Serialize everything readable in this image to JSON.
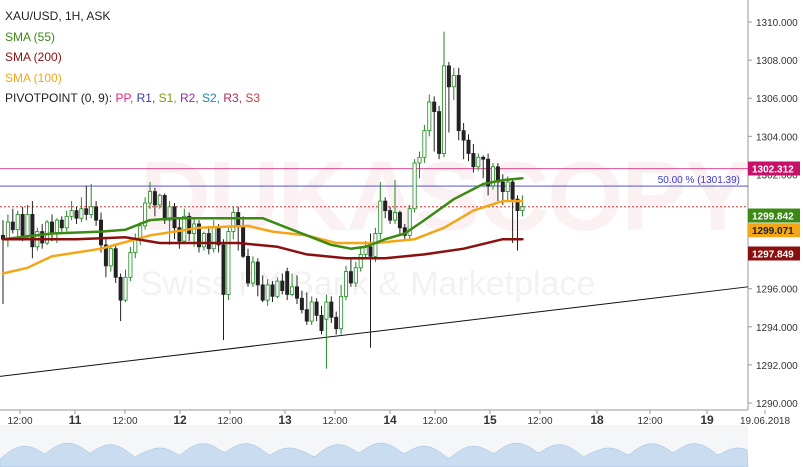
{
  "legend": {
    "symbol": "XAU/USD, 1H, ASK",
    "sma55": "SMA (55)",
    "sma200": "SMA (200)",
    "sma100": "SMA (100)",
    "pivot_prefix": "PIVOTPOINT (0, 9):",
    "pivot_items": [
      {
        "label": "PP",
        "color": "#e0208c"
      },
      {
        "label": "R1",
        "color": "#3a3aa8"
      },
      {
        "label": "S1",
        "color": "#7a9a10"
      },
      {
        "label": "R2",
        "color": "#8a2aa8"
      },
      {
        "label": "S2",
        "color": "#1a8aa8"
      },
      {
        "label": "R3",
        "color": "#a82a5a"
      },
      {
        "label": "S3",
        "color": "#c04040"
      }
    ]
  },
  "watermark": {
    "main": "DUKASCOPY",
    "sub": "Swiss FX Bank & Marketplace"
  },
  "colors": {
    "up": "#1e8a1e",
    "down": "#222222",
    "sma55": "#3a8a14",
    "sma100": "#f5a617",
    "sma200": "#8a1010",
    "pp_line": "#c8106a",
    "fib_line": "#3a3ad0",
    "trendline": "#111111",
    "current_line": "#cc1111"
  },
  "chart_data": {
    "type": "candlestick",
    "symbol": "XAU/USD",
    "timeframe": "1H",
    "price_side": "ASK",
    "ylim": [
      1290.0,
      1311.0
    ],
    "y_ticks": [
      "1310.000",
      "1308.000",
      "1306.000",
      "1304.000",
      "1302.000",
      "1300.000",
      "1298.000",
      "1296.000",
      "1294.000",
      "1292.000",
      "1290.000"
    ],
    "x_ticks": [
      "12:00",
      "11",
      "12:00",
      "12",
      "12:00",
      "13",
      "12:00",
      "14",
      "12:00",
      "15",
      "12:00",
      "18",
      "12:00",
      "19",
      "19.06.2018"
    ],
    "candles": [
      [
        1298.8,
        1298.6,
        1299.6,
        1295.2
      ],
      [
        1298.6,
        1299.5,
        1299.9,
        1298.2
      ],
      [
        1299.5,
        1299.1,
        1300.2,
        1298.9
      ],
      [
        1299.1,
        1299.9,
        1300.1,
        1298.7
      ],
      [
        1299.9,
        1298.8,
        1300.3,
        1298.5
      ],
      [
        1298.8,
        1299.9,
        1300.4,
        1298.6
      ],
      [
        1299.9,
        1298.2,
        1300.6,
        1297.6
      ],
      [
        1298.2,
        1299.0,
        1299.2,
        1298.0
      ],
      [
        1299.0,
        1298.4,
        1299.4,
        1298.1
      ],
      [
        1298.4,
        1299.5,
        1299.6,
        1298.3
      ],
      [
        1299.5,
        1298.9,
        1299.9,
        1298.5
      ],
      [
        1298.9,
        1299.6,
        1299.7,
        1298.4
      ],
      [
        1299.6,
        1299.2,
        1299.8,
        1299.0
      ],
      [
        1299.2,
        1299.8,
        1300.1,
        1299.0
      ],
      [
        1299.8,
        1300.1,
        1300.6,
        1299.6
      ],
      [
        1300.1,
        1299.7,
        1300.3,
        1299.4
      ],
      [
        1299.7,
        1300.2,
        1300.8,
        1299.5
      ],
      [
        1300.2,
        1299.9,
        1301.4,
        1299.6
      ],
      [
        1299.9,
        1300.3,
        1301.5,
        1299.7
      ],
      [
        1300.3,
        1299.6,
        1300.6,
        1299.3
      ],
      [
        1299.6,
        1298.3,
        1300.0,
        1297.9
      ],
      [
        1298.3,
        1297.2,
        1298.6,
        1296.6
      ],
      [
        1297.2,
        1298.1,
        1298.3,
        1296.9
      ],
      [
        1298.1,
        1296.6,
        1298.3,
        1296.3
      ],
      [
        1296.6,
        1295.4,
        1296.8,
        1294.3
      ],
      [
        1295.4,
        1296.6,
        1297.0,
        1295.3
      ],
      [
        1296.6,
        1297.9,
        1298.2,
        1296.4
      ],
      [
        1297.9,
        1298.6,
        1298.9,
        1297.6
      ],
      [
        1298.6,
        1299.3,
        1299.5,
        1298.3
      ],
      [
        1299.3,
        1300.5,
        1300.8,
        1299.1
      ],
      [
        1300.5,
        1301.1,
        1301.6,
        1300.2
      ],
      [
        1301.1,
        1300.4,
        1301.3,
        1299.8
      ],
      [
        1300.4,
        1300.9,
        1301.0,
        1300.2
      ],
      [
        1300.9,
        1299.6,
        1301.0,
        1299.4
      ],
      [
        1299.6,
        1300.3,
        1300.6,
        1298.3
      ],
      [
        1300.3,
        1299.2,
        1300.5,
        1298.6
      ],
      [
        1299.2,
        1298.5,
        1299.7,
        1298.1
      ],
      [
        1298.5,
        1299.8,
        1300.2,
        1298.4
      ],
      [
        1299.8,
        1298.9,
        1300.0,
        1298.5
      ],
      [
        1298.9,
        1299.4,
        1299.7,
        1298.2
      ],
      [
        1299.4,
        1298.2,
        1299.6,
        1297.9
      ],
      [
        1298.2,
        1298.9,
        1299.0,
        1298.0
      ],
      [
        1298.9,
        1298.1,
        1299.3,
        1297.8
      ],
      [
        1298.1,
        1299.2,
        1299.6,
        1297.9
      ],
      [
        1299.2,
        1298.3,
        1299.4,
        1297.9
      ],
      [
        1298.3,
        1295.7,
        1298.6,
        1293.3
      ],
      [
        1295.7,
        1299.0,
        1299.2,
        1295.4
      ],
      [
        1299.0,
        1300.0,
        1300.3,
        1298.6
      ],
      [
        1300.0,
        1299.3,
        1300.3,
        1298.0
      ],
      [
        1299.3,
        1297.7,
        1299.8,
        1297.6
      ],
      [
        1297.7,
        1296.3,
        1298.1,
        1296.1
      ],
      [
        1296.3,
        1297.4,
        1297.7,
        1296.1
      ],
      [
        1297.4,
        1296.2,
        1297.6,
        1295.6
      ],
      [
        1296.2,
        1295.4,
        1296.7,
        1295.3
      ],
      [
        1295.4,
        1296.2,
        1296.5,
        1295.1
      ],
      [
        1296.2,
        1295.6,
        1296.4,
        1295.3
      ],
      [
        1295.6,
        1296.4,
        1296.6,
        1295.5
      ],
      [
        1296.4,
        1295.9,
        1296.8,
        1295.7
      ],
      [
        1296.9,
        1295.7,
        1297.1,
        1295.4
      ],
      [
        1295.7,
        1296.1,
        1296.8,
        1295.6
      ],
      [
        1296.1,
        1295.5,
        1296.7,
        1295.2
      ],
      [
        1295.5,
        1294.9,
        1295.9,
        1294.7
      ],
      [
        1294.9,
        1294.3,
        1295.8,
        1294.1
      ],
      [
        1294.3,
        1295.3,
        1295.6,
        1294.1
      ],
      [
        1295.3,
        1294.6,
        1295.5,
        1294.3
      ],
      [
        1294.6,
        1293.8,
        1295.1,
        1293.6
      ],
      [
        1294.4,
        1295.3,
        1295.7,
        1291.8
      ],
      [
        1295.3,
        1294.5,
        1295.6,
        1294.2
      ],
      [
        1294.5,
        1293.9,
        1294.8,
        1293.6
      ],
      [
        1293.9,
        1295.6,
        1296.2,
        1293.6
      ],
      [
        1295.6,
        1296.9,
        1297.2,
        1295.4
      ],
      [
        1296.9,
        1296.3,
        1297.6,
        1296.1
      ],
      [
        1296.3,
        1297.1,
        1297.4,
        1296.1
      ],
      [
        1297.1,
        1297.8,
        1298.2,
        1296.9
      ],
      [
        1297.8,
        1298.2,
        1298.5,
        1297.6
      ],
      [
        1298.2,
        1297.7,
        1298.9,
        1292.9
      ],
      [
        1297.7,
        1298.9,
        1299.2,
        1297.4
      ],
      [
        1298.9,
        1300.6,
        1301.6,
        1298.6
      ],
      [
        1300.6,
        1300.1,
        1300.8,
        1299.7
      ],
      [
        1300.1,
        1299.6,
        1300.3,
        1299.4
      ],
      [
        1299.6,
        1300.0,
        1301.7,
        1299.4
      ],
      [
        1300.0,
        1299.2,
        1300.1,
        1298.8
      ],
      [
        1299.2,
        1298.8,
        1299.4,
        1298.5
      ],
      [
        1298.8,
        1300.2,
        1300.4,
        1298.6
      ],
      [
        1300.2,
        1302.6,
        1302.8,
        1300.0
      ],
      [
        1302.6,
        1302.9,
        1303.2,
        1301.8
      ],
      [
        1302.9,
        1304.3,
        1304.6,
        1302.6
      ],
      [
        1304.3,
        1305.8,
        1306.2,
        1304.0
      ],
      [
        1305.8,
        1305.3,
        1306.1,
        1303.2
      ],
      [
        1305.3,
        1303.1,
        1305.6,
        1302.8
      ],
      [
        1303.1,
        1307.7,
        1309.5,
        1302.9
      ],
      [
        1307.7,
        1306.6,
        1307.9,
        1304.2
      ],
      [
        1306.6,
        1307.2,
        1307.6,
        1305.9
      ],
      [
        1307.2,
        1304.3,
        1307.6,
        1303.8
      ],
      [
        1304.3,
        1303.8,
        1304.7,
        1302.8
      ],
      [
        1303.8,
        1303.1,
        1304.1,
        1302.7
      ],
      [
        1303.1,
        1302.4,
        1303.6,
        1302.1
      ],
      [
        1302.4,
        1302.9,
        1303.1,
        1302.2
      ],
      [
        1302.9,
        1302.8,
        1303.0,
        1301.8
      ],
      [
        1302.8,
        1301.4,
        1303.1,
        1300.9
      ],
      [
        1301.4,
        1302.4,
        1302.6,
        1301.2
      ],
      [
        1302.4,
        1301.6,
        1302.6,
        1300.6
      ],
      [
        1301.6,
        1301.1,
        1302.0,
        1300.4
      ],
      [
        1301.1,
        1301.6,
        1301.9,
        1300.6
      ],
      [
        1301.6,
        1300.7,
        1301.8,
        1298.4
      ],
      [
        1300.7,
        1300.1,
        1300.9,
        1298.0
      ],
      [
        1300.1,
        1300.3,
        1300.9,
        1299.8
      ]
    ],
    "sma55_points": [
      [
        0,
        1298.6
      ],
      [
        10,
        1298.9
      ],
      [
        20,
        1299.0
      ],
      [
        25,
        1299.1
      ],
      [
        30,
        1299.6
      ],
      [
        35,
        1299.7
      ],
      [
        45,
        1299.7
      ],
      [
        53,
        1299.7
      ],
      [
        58,
        1299.2
      ],
      [
        63,
        1298.7
      ],
      [
        67,
        1298.3
      ],
      [
        71,
        1298.1
      ],
      [
        74,
        1298.2
      ],
      [
        78,
        1298.6
      ],
      [
        82,
        1298.9
      ],
      [
        86,
        1299.6
      ],
      [
        92,
        1300.7
      ],
      [
        98,
        1301.5
      ],
      [
        102,
        1301.7
      ],
      [
        106,
        1301.8
      ]
    ],
    "sma100_points": [
      [
        0,
        1296.8
      ],
      [
        5,
        1297.1
      ],
      [
        10,
        1297.7
      ],
      [
        20,
        1298.1
      ],
      [
        30,
        1298.8
      ],
      [
        40,
        1299.2
      ],
      [
        50,
        1299.3
      ],
      [
        55,
        1299.0
      ],
      [
        62,
        1298.8
      ],
      [
        68,
        1298.4
      ],
      [
        76,
        1298.4
      ],
      [
        84,
        1298.6
      ],
      [
        90,
        1299.2
      ],
      [
        96,
        1300.1
      ],
      [
        102,
        1300.6
      ],
      [
        106,
        1300.6
      ]
    ],
    "sma200_points": [
      [
        0,
        1298.6
      ],
      [
        15,
        1298.6
      ],
      [
        25,
        1298.7
      ],
      [
        32,
        1298.4
      ],
      [
        40,
        1298.4
      ],
      [
        48,
        1298.4
      ],
      [
        56,
        1298.2
      ],
      [
        62,
        1297.8
      ],
      [
        70,
        1297.6
      ],
      [
        78,
        1297.6
      ],
      [
        86,
        1297.8
      ],
      [
        94,
        1298.1
      ],
      [
        102,
        1298.6
      ],
      [
        106,
        1298.6
      ]
    ],
    "trendline": {
      "x": [
        0,
        140
      ],
      "y": [
        1291.4,
        1296.1
      ]
    },
    "horizontal_levels": [
      {
        "label": "1302.312",
        "value": 1302.3,
        "color": "#c8106a"
      },
      {
        "label": "50.00 % (1301.39)",
        "value": 1301.39,
        "color": "#3a3ad0"
      },
      {
        "label": "1299.842",
        "value": 1299.8,
        "color": "#3a8a14"
      },
      {
        "label": "1299.071",
        "value": 1299.07,
        "color": "#f5a617"
      },
      {
        "label": "1297.849",
        "value": 1297.85,
        "color": "#8a1010"
      }
    ],
    "price_labels": [
      {
        "text": "1302.312",
        "value": 1302.312,
        "bg": "#c8106a",
        "fg": "#ffffff"
      },
      {
        "text": "1299.842",
        "value": 1299.842,
        "bg": "#3a8a14",
        "fg": "#ffffff"
      },
      {
        "text": "1299.071",
        "value": 1299.071,
        "bg": "#f5a617",
        "fg": "#222222"
      },
      {
        "text": "1297.849",
        "value": 1297.849,
        "bg": "#8a1010",
        "fg": "#ffffff"
      }
    ],
    "fib_label": "50.00 % (1301.39)"
  }
}
